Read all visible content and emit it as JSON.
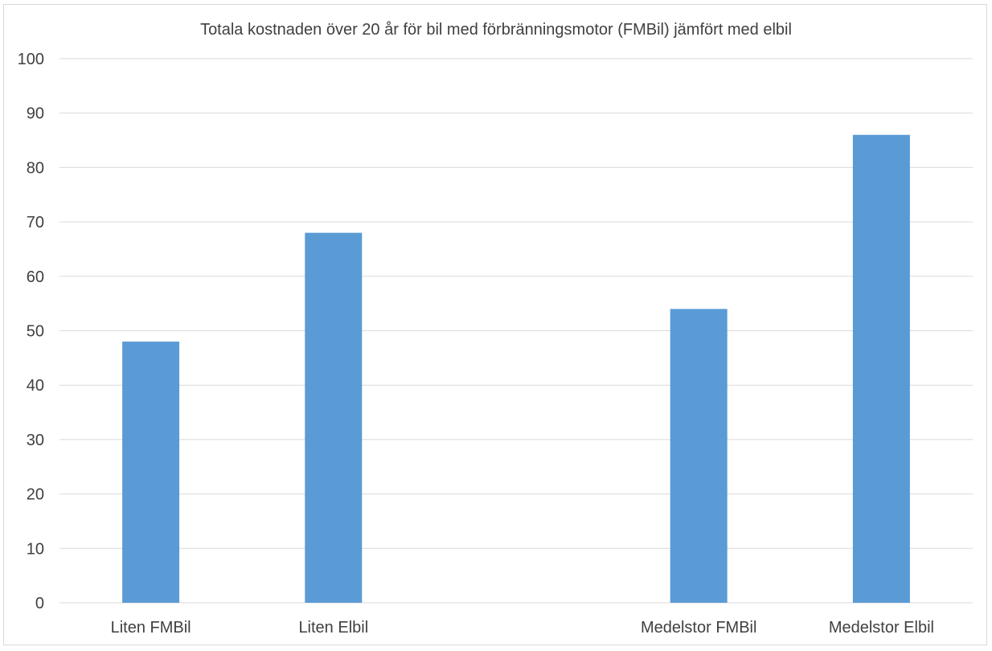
{
  "chart_data": {
    "type": "bar",
    "title": "Totala kostnaden över 20 år för bil med förbränningsmotor (FMBil) jämfört med elbil",
    "categories": [
      "Liten FMBil",
      "Liten Elbil",
      "",
      "Medelstor FMBil",
      "Medelstor Elbil"
    ],
    "values": [
      48,
      68,
      null,
      54,
      86
    ],
    "xlabel": "",
    "ylabel": "",
    "ylim": [
      0,
      100
    ],
    "yticks": [
      0,
      10,
      20,
      30,
      40,
      50,
      60,
      70,
      80,
      90,
      100
    ],
    "ytick_labels": [
      "0",
      "10",
      "20",
      "30",
      "40",
      "50",
      "60",
      "70",
      "80",
      "90",
      "100"
    ],
    "grid": true,
    "legend": "none",
    "bar_color": "#5b9bd5",
    "grid_color": "#d9d9d9"
  }
}
